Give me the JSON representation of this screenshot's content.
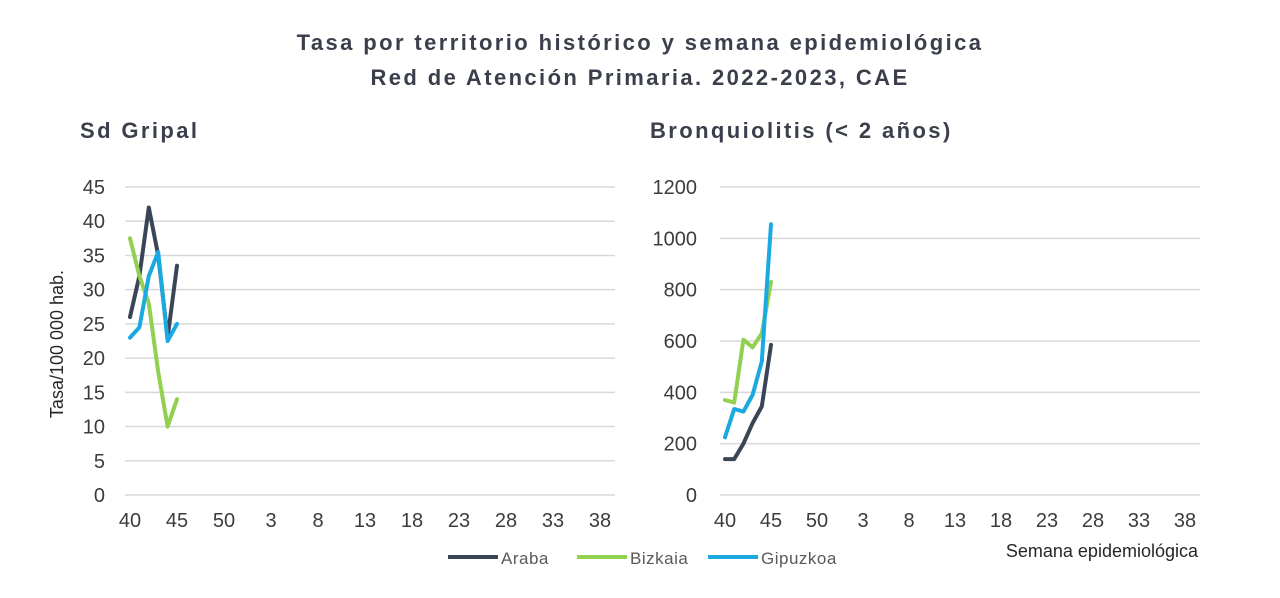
{
  "header": {
    "title_line1": "Tasa por territorio histórico y semana epidemiológica",
    "title_line2": "Red de Atención Primaria. 2022-2023, CAE"
  },
  "colors": {
    "Araba": "#3a4556",
    "Bizkaia": "#92d050",
    "Gipuzkoa": "#1ba9e1",
    "grid": "#d9d9d9"
  },
  "chart_data": [
    {
      "type": "line",
      "title": "Sd Gripal",
      "ylabel": "Tasa/100 000 hab.",
      "xlabel": "",
      "ylim": [
        0,
        45
      ],
      "yticks": [
        "0",
        "5",
        "10",
        "15",
        "20",
        "25",
        "30",
        "35",
        "40",
        "45"
      ],
      "xticks": [
        "40",
        "45",
        "50",
        "3",
        "8",
        "13",
        "18",
        "23",
        "28",
        "33",
        "38"
      ],
      "x": [
        40,
        41,
        42,
        43,
        44,
        45
      ],
      "series": [
        {
          "name": "Araba",
          "values": [
            26,
            32,
            42,
            35,
            23,
            33.5
          ]
        },
        {
          "name": "Bizkaia",
          "values": [
            37.5,
            32,
            28,
            18,
            10,
            14
          ]
        },
        {
          "name": "Gipuzkoa",
          "values": [
            23,
            24.5,
            32,
            35.5,
            22.5,
            25
          ]
        }
      ]
    },
    {
      "type": "line",
      "title": "Bronquiolitis (< 2 años)",
      "ylabel": "",
      "xlabel": "Semana epidemiológica",
      "ylim": [
        0,
        1200
      ],
      "yticks": [
        "0",
        "200",
        "400",
        "600",
        "800",
        "1000",
        "1200"
      ],
      "xticks": [
        "40",
        "45",
        "50",
        "3",
        "8",
        "13",
        "18",
        "23",
        "28",
        "33",
        "38"
      ],
      "x": [
        40,
        41,
        42,
        43,
        44,
        45
      ],
      "series": [
        {
          "name": "Araba",
          "values": [
            140,
            140,
            200,
            280,
            345,
            585
          ]
        },
        {
          "name": "Bizkaia",
          "values": [
            370,
            360,
            605,
            575,
            630,
            830
          ]
        },
        {
          "name": "Gipuzkoa",
          "values": [
            225,
            335,
            325,
            390,
            520,
            1055
          ]
        }
      ]
    }
  ],
  "legend": [
    "Araba",
    "Bizkaia",
    "Gipuzkoa"
  ]
}
